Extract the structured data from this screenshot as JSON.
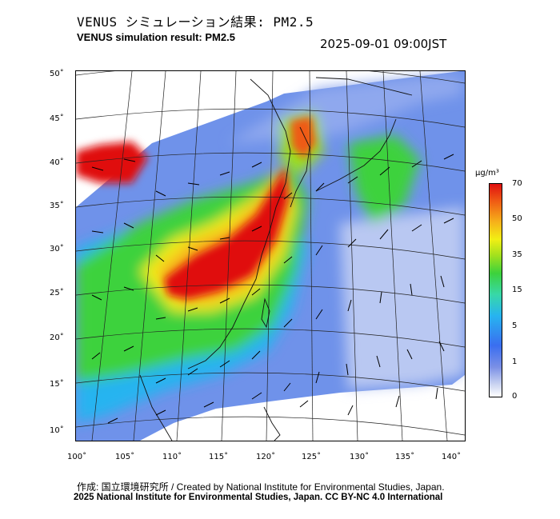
{
  "title_jp": "VENUS シミュレーション結果: PM2.5",
  "title_en": "VENUS simulation result: PM2.5",
  "timestamp": "2025-09-01 09:00JST",
  "lat_labels": [
    "50˚",
    "45˚",
    "40˚",
    "35˚",
    "30˚",
    "25˚",
    "20˚",
    "15˚",
    "10˚"
  ],
  "lon_labels": [
    "100˚",
    "105˚",
    "110˚",
    "115˚",
    "120˚",
    "125˚",
    "130˚",
    "135˚",
    "140˚"
  ],
  "colorbar": {
    "unit": "μg/m³",
    "ticks": [
      "70",
      "50",
      "35",
      "15",
      "5",
      "1",
      "0"
    ]
  },
  "footer": {
    "credit": "作成: 国立環境研究所 / Created by National Institute for Environmental Studies, Japan.",
    "copyright": "2025 National Institute for Environmental Studies, Japan. CC BY-NC 4.0 International"
  },
  "colors": {
    "high": "#e01010",
    "orange": "#f6b21a",
    "yellow": "#f2ef14",
    "green": "#3cd23c",
    "cyan": "#27b4f0",
    "blue": "#3a6ef0",
    "pale": "#c8d2f0"
  }
}
